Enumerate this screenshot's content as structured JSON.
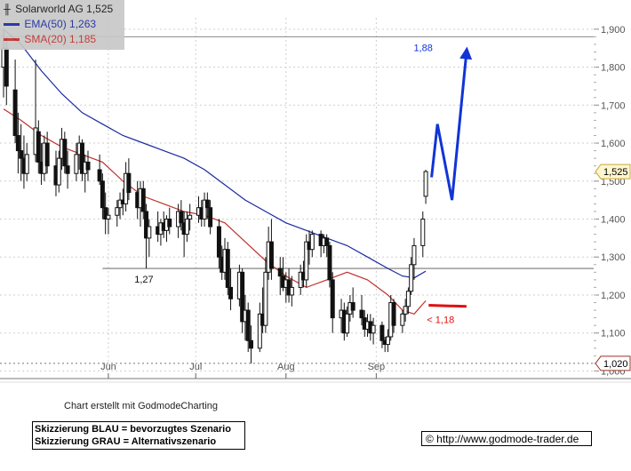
{
  "legend": {
    "title": "Solarworld AG 1,525",
    "ema": "EMA(50) 1,263",
    "sma": "SMA(20) 1,185"
  },
  "footer": {
    "credit": "Chart erstellt mit GodmodeCharting",
    "sketch_blue": "Skizzierung BLAU = bevorzugtes Szenario",
    "sketch_gray": "Skizzierung GRAU = Alternativszenario",
    "url": "© http://www.godmode-trader.de"
  },
  "colors": {
    "candle": "#111111",
    "ema": "#1a2a9e",
    "sma": "#c0312b",
    "forecast_blue": "#1034d6",
    "support_red": "#e01010",
    "grid": "#cfcfcf",
    "level_line": "#999999"
  },
  "chart_data": {
    "type": "candlestick",
    "title": "Solarworld AG 1,525",
    "y_ticks": [
      "1,000",
      "1,100",
      "1,200",
      "1,300",
      "1,400",
      "1,500",
      "1,600",
      "1,700",
      "1,800",
      "1,900"
    ],
    "y_tick_values": [
      1.0,
      1.1,
      1.2,
      1.3,
      1.4,
      1.5,
      1.6,
      1.7,
      1.8,
      1.9
    ],
    "ylim": [
      0.98,
      1.93
    ],
    "x_ticks": [
      "Jun",
      "Jul",
      "Aug",
      "Sep"
    ],
    "x_tick_dates": [
      "2012-06-01",
      "2012-07-01",
      "2012-08-01",
      "2012-09-01"
    ],
    "xlim": [
      "2012-04-26",
      "2012-09-25"
    ],
    "grid": true,
    "last_price_label": "1,525",
    "last_price": 1.525,
    "low_label": "1,020",
    "low_level": 1.02,
    "horizontal_level": 1.27,
    "horizontal_level_label": "1,27",
    "candles": [
      {
        "date": "2012-04-26",
        "open": 1.8,
        "high": 1.9,
        "low": 1.72,
        "close": 1.85
      },
      {
        "date": "2012-04-27",
        "open": 1.85,
        "high": 1.88,
        "low": 1.7,
        "close": 1.75
      },
      {
        "date": "2012-04-30",
        "open": 1.74,
        "high": 1.82,
        "low": 1.6,
        "close": 1.62
      },
      {
        "date": "2012-05-01",
        "open": 1.62,
        "high": 1.68,
        "low": 1.52,
        "close": 1.58
      },
      {
        "date": "2012-05-02",
        "open": 1.58,
        "high": 1.65,
        "low": 1.5,
        "close": 1.56
      },
      {
        "date": "2012-05-03",
        "open": 1.56,
        "high": 1.62,
        "low": 1.48,
        "close": 1.52
      },
      {
        "date": "2012-05-04",
        "open": 1.52,
        "high": 1.6,
        "low": 1.5,
        "close": 1.57
      },
      {
        "date": "2012-05-07",
        "open": 1.57,
        "high": 1.82,
        "low": 1.55,
        "close": 1.64
      },
      {
        "date": "2012-05-08",
        "open": 1.63,
        "high": 1.66,
        "low": 1.52,
        "close": 1.55
      },
      {
        "date": "2012-05-09",
        "open": 1.55,
        "high": 1.6,
        "low": 1.49,
        "close": 1.52
      },
      {
        "date": "2012-05-10",
        "open": 1.52,
        "high": 1.62,
        "low": 1.5,
        "close": 1.6
      },
      {
        "date": "2012-05-11",
        "open": 1.6,
        "high": 1.63,
        "low": 1.52,
        "close": 1.54
      },
      {
        "date": "2012-05-14",
        "open": 1.54,
        "high": 1.58,
        "low": 1.46,
        "close": 1.49
      },
      {
        "date": "2012-05-15",
        "open": 1.49,
        "high": 1.58,
        "low": 1.47,
        "close": 1.56
      },
      {
        "date": "2012-05-16",
        "open": 1.56,
        "high": 1.64,
        "low": 1.53,
        "close": 1.61
      },
      {
        "date": "2012-05-17",
        "open": 1.61,
        "high": 1.63,
        "low": 1.52,
        "close": 1.54
      },
      {
        "date": "2012-05-18",
        "open": 1.54,
        "high": 1.58,
        "low": 1.48,
        "close": 1.52
      },
      {
        "date": "2012-05-21",
        "open": 1.52,
        "high": 1.6,
        "low": 1.5,
        "close": 1.57
      },
      {
        "date": "2012-05-22",
        "open": 1.57,
        "high": 1.62,
        "low": 1.53,
        "close": 1.6
      },
      {
        "date": "2012-05-23",
        "open": 1.6,
        "high": 1.61,
        "low": 1.5,
        "close": 1.52
      },
      {
        "date": "2012-05-24",
        "open": 1.52,
        "high": 1.57,
        "low": 1.47,
        "close": 1.55
      },
      {
        "date": "2012-05-25",
        "open": 1.55,
        "high": 1.58,
        "low": 1.5,
        "close": 1.53
      },
      {
        "date": "2012-05-29",
        "open": 1.53,
        "high": 1.57,
        "low": 1.49,
        "close": 1.5
      },
      {
        "date": "2012-05-30",
        "open": 1.5,
        "high": 1.52,
        "low": 1.4,
        "close": 1.43
      },
      {
        "date": "2012-05-31",
        "open": 1.43,
        "high": 1.47,
        "low": 1.36,
        "close": 1.4
      },
      {
        "date": "2012-06-01",
        "open": 1.4,
        "high": 1.43,
        "low": 1.36,
        "close": 1.41
      },
      {
        "date": "2012-06-04",
        "open": 1.41,
        "high": 1.45,
        "low": 1.38,
        "close": 1.43
      },
      {
        "date": "2012-06-05",
        "open": 1.43,
        "high": 1.47,
        "low": 1.4,
        "close": 1.45
      },
      {
        "date": "2012-06-06",
        "open": 1.45,
        "high": 1.48,
        "low": 1.41,
        "close": 1.44
      },
      {
        "date": "2012-06-07",
        "open": 1.44,
        "high": 1.55,
        "low": 1.42,
        "close": 1.52
      },
      {
        "date": "2012-06-08",
        "open": 1.52,
        "high": 1.56,
        "low": 1.45,
        "close": 1.47
      },
      {
        "date": "2012-06-11",
        "open": 1.47,
        "high": 1.5,
        "low": 1.4,
        "close": 1.43
      },
      {
        "date": "2012-06-12",
        "open": 1.43,
        "high": 1.5,
        "low": 1.38,
        "close": 1.48
      },
      {
        "date": "2012-06-13",
        "open": 1.48,
        "high": 1.5,
        "low": 1.4,
        "close": 1.42
      },
      {
        "date": "2012-06-14",
        "open": 1.42,
        "high": 1.44,
        "low": 1.27,
        "close": 1.35
      },
      {
        "date": "2012-06-15",
        "open": 1.35,
        "high": 1.4,
        "low": 1.3,
        "close": 1.38
      },
      {
        "date": "2012-06-18",
        "open": 1.38,
        "high": 1.42,
        "low": 1.34,
        "close": 1.36
      },
      {
        "date": "2012-06-19",
        "open": 1.36,
        "high": 1.4,
        "low": 1.33,
        "close": 1.39
      },
      {
        "date": "2012-06-20",
        "open": 1.39,
        "high": 1.42,
        "low": 1.35,
        "close": 1.37
      },
      {
        "date": "2012-06-21",
        "open": 1.37,
        "high": 1.41,
        "low": 1.34,
        "close": 1.4
      },
      {
        "date": "2012-06-22",
        "open": 1.4,
        "high": 1.43,
        "low": 1.36,
        "close": 1.38
      },
      {
        "date": "2012-06-25",
        "open": 1.38,
        "high": 1.44,
        "low": 1.35,
        "close": 1.42
      },
      {
        "date": "2012-06-26",
        "open": 1.42,
        "high": 1.45,
        "low": 1.37,
        "close": 1.39
      },
      {
        "date": "2012-06-27",
        "open": 1.39,
        "high": 1.42,
        "low": 1.3,
        "close": 1.36
      },
      {
        "date": "2012-06-28",
        "open": 1.36,
        "high": 1.42,
        "low": 1.34,
        "close": 1.4
      },
      {
        "date": "2012-06-29",
        "open": 1.4,
        "high": 1.44,
        "low": 1.37,
        "close": 1.41
      },
      {
        "date": "2012-07-02",
        "open": 1.41,
        "high": 1.46,
        "low": 1.39,
        "close": 1.43
      },
      {
        "date": "2012-07-03",
        "open": 1.43,
        "high": 1.45,
        "low": 1.38,
        "close": 1.4
      },
      {
        "date": "2012-07-04",
        "open": 1.4,
        "high": 1.47,
        "low": 1.38,
        "close": 1.45
      },
      {
        "date": "2012-07-05",
        "open": 1.45,
        "high": 1.47,
        "low": 1.4,
        "close": 1.43
      },
      {
        "date": "2012-07-06",
        "open": 1.43,
        "high": 1.45,
        "low": 1.36,
        "close": 1.38
      },
      {
        "date": "2012-07-09",
        "open": 1.38,
        "high": 1.4,
        "low": 1.27,
        "close": 1.3
      },
      {
        "date": "2012-07-10",
        "open": 1.3,
        "high": 1.33,
        "low": 1.24,
        "close": 1.26
      },
      {
        "date": "2012-07-11",
        "open": 1.26,
        "high": 1.35,
        "low": 1.24,
        "close": 1.32
      },
      {
        "date": "2012-07-12",
        "open": 1.32,
        "high": 1.34,
        "low": 1.2,
        "close": 1.22
      },
      {
        "date": "2012-07-13",
        "open": 1.22,
        "high": 1.27,
        "low": 1.16,
        "close": 1.19
      },
      {
        "date": "2012-07-16",
        "open": 1.19,
        "high": 1.28,
        "low": 1.17,
        "close": 1.26
      },
      {
        "date": "2012-07-17",
        "open": 1.26,
        "high": 1.27,
        "low": 1.1,
        "close": 1.13
      },
      {
        "date": "2012-07-18",
        "open": 1.13,
        "high": 1.2,
        "low": 1.08,
        "close": 1.16
      },
      {
        "date": "2012-07-19",
        "open": 1.16,
        "high": 1.18,
        "low": 1.05,
        "close": 1.08
      },
      {
        "date": "2012-07-20",
        "open": 1.08,
        "high": 1.12,
        "low": 1.02,
        "close": 1.06
      },
      {
        "date": "2012-07-23",
        "open": 1.06,
        "high": 1.18,
        "low": 1.05,
        "close": 1.15
      },
      {
        "date": "2012-07-24",
        "open": 1.15,
        "high": 1.22,
        "low": 1.1,
        "close": 1.12
      },
      {
        "date": "2012-07-25",
        "open": 1.12,
        "high": 1.3,
        "low": 1.1,
        "close": 1.26
      },
      {
        "date": "2012-07-26",
        "open": 1.26,
        "high": 1.38,
        "low": 1.24,
        "close": 1.34
      },
      {
        "date": "2012-07-27",
        "open": 1.34,
        "high": 1.4,
        "low": 1.24,
        "close": 1.27
      },
      {
        "date": "2012-07-30",
        "open": 1.27,
        "high": 1.3,
        "low": 1.2,
        "close": 1.25
      },
      {
        "date": "2012-07-31",
        "open": 1.25,
        "high": 1.3,
        "low": 1.21,
        "close": 1.22
      },
      {
        "date": "2012-08-01",
        "open": 1.22,
        "high": 1.26,
        "low": 1.18,
        "close": 1.24
      },
      {
        "date": "2012-08-02",
        "open": 1.24,
        "high": 1.27,
        "low": 1.18,
        "close": 1.2
      },
      {
        "date": "2012-08-03",
        "open": 1.2,
        "high": 1.25,
        "low": 1.17,
        "close": 1.22
      },
      {
        "date": "2012-08-06",
        "open": 1.22,
        "high": 1.28,
        "low": 1.2,
        "close": 1.26
      },
      {
        "date": "2012-08-07",
        "open": 1.26,
        "high": 1.29,
        "low": 1.22,
        "close": 1.24
      },
      {
        "date": "2012-08-08",
        "open": 1.24,
        "high": 1.36,
        "low": 1.22,
        "close": 1.34
      },
      {
        "date": "2012-08-09",
        "open": 1.34,
        "high": 1.37,
        "low": 1.28,
        "close": 1.32
      },
      {
        "date": "2012-08-10",
        "open": 1.32,
        "high": 1.37,
        "low": 1.3,
        "close": 1.36
      },
      {
        "date": "2012-08-13",
        "open": 1.36,
        "high": 1.37,
        "low": 1.3,
        "close": 1.33
      },
      {
        "date": "2012-08-14",
        "open": 1.33,
        "high": 1.36,
        "low": 1.31,
        "close": 1.35
      },
      {
        "date": "2012-08-15",
        "open": 1.35,
        "high": 1.36,
        "low": 1.3,
        "close": 1.33
      },
      {
        "date": "2012-08-16",
        "open": 1.33,
        "high": 1.34,
        "low": 1.22,
        "close": 1.24
      },
      {
        "date": "2012-08-17",
        "open": 1.24,
        "high": 1.26,
        "low": 1.1,
        "close": 1.14
      },
      {
        "date": "2012-08-20",
        "open": 1.14,
        "high": 1.19,
        "low": 1.1,
        "close": 1.16
      },
      {
        "date": "2012-08-21",
        "open": 1.16,
        "high": 1.18,
        "low": 1.08,
        "close": 1.1
      },
      {
        "date": "2012-08-22",
        "open": 1.1,
        "high": 1.17,
        "low": 1.09,
        "close": 1.15
      },
      {
        "date": "2012-08-23",
        "open": 1.15,
        "high": 1.2,
        "low": 1.13,
        "close": 1.18
      },
      {
        "date": "2012-08-24",
        "open": 1.18,
        "high": 1.22,
        "low": 1.14,
        "close": 1.16
      },
      {
        "date": "2012-08-27",
        "open": 1.16,
        "high": 1.2,
        "low": 1.12,
        "close": 1.14
      },
      {
        "date": "2012-08-28",
        "open": 1.14,
        "high": 1.16,
        "low": 1.09,
        "close": 1.11
      },
      {
        "date": "2012-08-29",
        "open": 1.11,
        "high": 1.15,
        "low": 1.09,
        "close": 1.13
      },
      {
        "date": "2012-08-30",
        "open": 1.13,
        "high": 1.15,
        "low": 1.08,
        "close": 1.1
      },
      {
        "date": "2012-08-31",
        "open": 1.1,
        "high": 1.14,
        "low": 1.07,
        "close": 1.12
      },
      {
        "date": "2012-09-03",
        "open": 1.12,
        "high": 1.13,
        "low": 1.06,
        "close": 1.08
      },
      {
        "date": "2012-09-04",
        "open": 1.08,
        "high": 1.09,
        "low": 1.05,
        "close": 1.07
      },
      {
        "date": "2012-09-05",
        "open": 1.07,
        "high": 1.11,
        "low": 1.05,
        "close": 1.09
      },
      {
        "date": "2012-09-06",
        "open": 1.09,
        "high": 1.2,
        "low": 1.08,
        "close": 1.18
      },
      {
        "date": "2012-09-07",
        "open": 1.18,
        "high": 1.19,
        "low": 1.1,
        "close": 1.12
      },
      {
        "date": "2012-09-10",
        "open": 1.12,
        "high": 1.16,
        "low": 1.1,
        "close": 1.15
      },
      {
        "date": "2012-09-11",
        "open": 1.15,
        "high": 1.19,
        "low": 1.13,
        "close": 1.17
      },
      {
        "date": "2012-09-12",
        "open": 1.17,
        "high": 1.22,
        "low": 1.15,
        "close": 1.21
      },
      {
        "date": "2012-09-13",
        "open": 1.21,
        "high": 1.3,
        "low": 1.2,
        "close": 1.28
      },
      {
        "date": "2012-09-14",
        "open": 1.28,
        "high": 1.35,
        "low": 1.24,
        "close": 1.33
      },
      {
        "date": "2012-09-17",
        "open": 1.33,
        "high": 1.42,
        "low": 1.3,
        "close": 1.4
      },
      {
        "date": "2012-09-18",
        "open": 1.46,
        "high": 1.53,
        "low": 1.44,
        "close": 1.525
      }
    ],
    "series": [
      {
        "name": "EMA(50) 1,263",
        "points": [
          [
            "2012-04-26",
            1.9
          ],
          [
            "2012-05-02",
            1.86
          ],
          [
            "2012-05-09",
            1.79
          ],
          [
            "2012-05-16",
            1.73
          ],
          [
            "2012-05-23",
            1.68
          ],
          [
            "2012-05-30",
            1.65
          ],
          [
            "2012-06-06",
            1.62
          ],
          [
            "2012-06-13",
            1.6
          ],
          [
            "2012-06-20",
            1.58
          ],
          [
            "2012-06-27",
            1.56
          ],
          [
            "2012-07-04",
            1.53
          ],
          [
            "2012-07-11",
            1.49
          ],
          [
            "2012-07-18",
            1.45
          ],
          [
            "2012-07-25",
            1.42
          ],
          [
            "2012-08-01",
            1.39
          ],
          [
            "2012-08-08",
            1.37
          ],
          [
            "2012-08-15",
            1.35
          ],
          [
            "2012-08-22",
            1.33
          ],
          [
            "2012-08-29",
            1.3
          ],
          [
            "2012-09-05",
            1.27
          ],
          [
            "2012-09-10",
            1.25
          ],
          [
            "2012-09-14",
            1.245
          ],
          [
            "2012-09-18",
            1.263
          ]
        ]
      },
      {
        "name": "SMA(20) 1,185",
        "points": [
          [
            "2012-04-26",
            1.69
          ],
          [
            "2012-05-02",
            1.66
          ],
          [
            "2012-05-09",
            1.62
          ],
          [
            "2012-05-16",
            1.59
          ],
          [
            "2012-05-23",
            1.57
          ],
          [
            "2012-05-30",
            1.55
          ],
          [
            "2012-06-06",
            1.5
          ],
          [
            "2012-06-13",
            1.46
          ],
          [
            "2012-06-20",
            1.44
          ],
          [
            "2012-06-27",
            1.42
          ],
          [
            "2012-07-04",
            1.41
          ],
          [
            "2012-07-11",
            1.39
          ],
          [
            "2012-07-18",
            1.34
          ],
          [
            "2012-07-25",
            1.29
          ],
          [
            "2012-08-01",
            1.25
          ],
          [
            "2012-08-08",
            1.22
          ],
          [
            "2012-08-15",
            1.24
          ],
          [
            "2012-08-22",
            1.26
          ],
          [
            "2012-08-29",
            1.24
          ],
          [
            "2012-09-05",
            1.2
          ],
          [
            "2012-09-10",
            1.16
          ],
          [
            "2012-09-14",
            1.15
          ],
          [
            "2012-09-18",
            1.185
          ]
        ]
      }
    ],
    "forecast_blue": {
      "points": [
        [
          "2012-09-20",
          1.51
        ],
        [
          "2012-09-22",
          1.65
        ],
        [
          "2012-09-27",
          1.45
        ],
        [
          "2012-10-02",
          1.84
        ]
      ],
      "label": "1,88"
    },
    "support_red": {
      "points": [
        [
          "2012-09-19",
          1.173
        ],
        [
          "2012-10-02",
          1.17
        ]
      ],
      "label": "< 1,18"
    }
  }
}
